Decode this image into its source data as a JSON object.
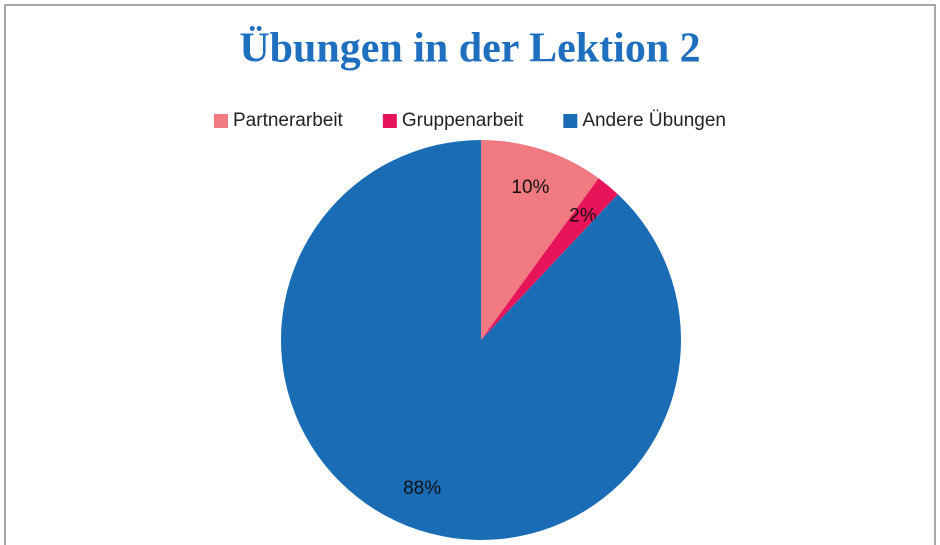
{
  "chart_data": {
    "type": "pie",
    "title": "Übungen in der Lektion 2",
    "categories": [
      "Partnerarbeit",
      "Gruppenarbeit",
      "Andere Übungen"
    ],
    "values": [
      10,
      2,
      88
    ],
    "value_labels": [
      "10%",
      "2%",
      "88%"
    ],
    "colors": [
      "#f07a80",
      "#e8145a",
      "#1a6db5"
    ],
    "legend": "top"
  }
}
